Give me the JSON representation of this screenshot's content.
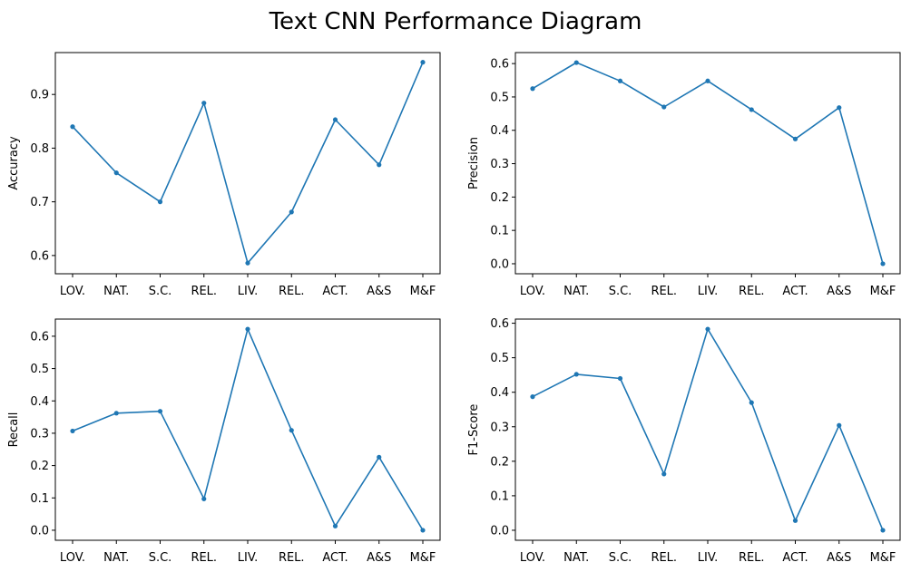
{
  "figure": {
    "title": "Text CNN Performance Diagram"
  },
  "colors": {
    "series": "#1f77b4",
    "axes": "#000000",
    "background": "#ffffff"
  },
  "chart_data": [
    {
      "type": "line",
      "ylabel": "Accuracy",
      "categories": [
        "LOV.",
        "NAT.",
        "S.C.",
        "REL.",
        "LIV.",
        "REL.",
        "ACT.",
        "A&S",
        "M&F"
      ],
      "values": [
        0.84,
        0.754,
        0.7,
        0.884,
        0.586,
        0.681,
        0.853,
        0.769,
        0.96
      ],
      "ylim": [
        0.566,
        0.978
      ],
      "yticks": [
        0.6,
        0.7,
        0.8,
        0.9
      ],
      "ytick_labels": [
        "0.6",
        "0.7",
        "0.8",
        "0.9"
      ],
      "grid": false,
      "markers": true
    },
    {
      "type": "line",
      "ylabel": "Precision",
      "categories": [
        "LOV.",
        "NAT.",
        "S.C.",
        "REL.",
        "LIV.",
        "REL.",
        "ACT.",
        "A&S",
        "M&F"
      ],
      "values": [
        0.525,
        0.603,
        0.548,
        0.47,
        0.548,
        0.462,
        0.374,
        0.468,
        0.0
      ],
      "ylim": [
        -0.03,
        0.633
      ],
      "yticks": [
        0.0,
        0.1,
        0.2,
        0.3,
        0.4,
        0.5,
        0.6
      ],
      "ytick_labels": [
        "0.0",
        "0.1",
        "0.2",
        "0.3",
        "0.4",
        "0.5",
        "0.6"
      ],
      "grid": false,
      "markers": true
    },
    {
      "type": "line",
      "ylabel": "Recall",
      "categories": [
        "LOV.",
        "NAT.",
        "S.C.",
        "REL.",
        "LIV.",
        "REL.",
        "ACT.",
        "A&S",
        "M&F"
      ],
      "values": [
        0.307,
        0.362,
        0.368,
        0.097,
        0.622,
        0.309,
        0.013,
        0.226,
        0.0
      ],
      "ylim": [
        -0.031,
        0.653
      ],
      "yticks": [
        0.0,
        0.1,
        0.2,
        0.3,
        0.4,
        0.5,
        0.6
      ],
      "ytick_labels": [
        "0.0",
        "0.1",
        "0.2",
        "0.3",
        "0.4",
        "0.5",
        "0.6"
      ],
      "grid": false,
      "markers": true
    },
    {
      "type": "line",
      "ylabel": "F1-Score",
      "categories": [
        "LOV.",
        "NAT.",
        "S.C.",
        "REL.",
        "LIV.",
        "REL.",
        "ACT.",
        "A&S",
        "M&F"
      ],
      "values": [
        0.387,
        0.452,
        0.44,
        0.163,
        0.583,
        0.37,
        0.028,
        0.304,
        0.0
      ],
      "ylim": [
        -0.029,
        0.612
      ],
      "yticks": [
        0.0,
        0.1,
        0.2,
        0.3,
        0.4,
        0.5,
        0.6
      ],
      "ytick_labels": [
        "0.0",
        "0.1",
        "0.2",
        "0.3",
        "0.4",
        "0.5",
        "0.6"
      ],
      "grid": false,
      "markers": true
    }
  ]
}
